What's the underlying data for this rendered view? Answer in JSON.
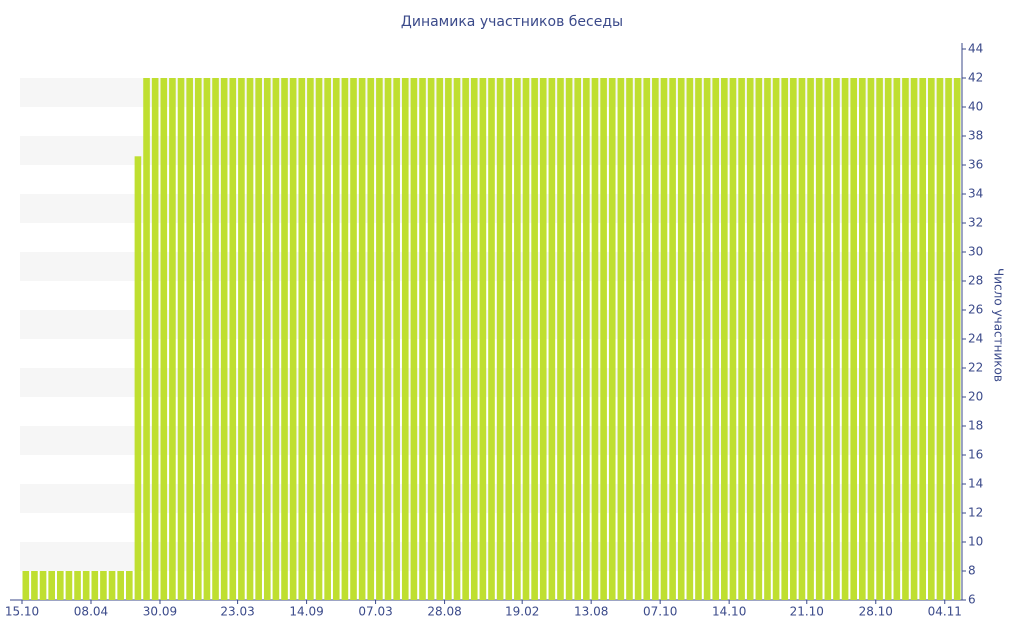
{
  "chart_data": {
    "type": "bar",
    "title": "Динамика участников беседы",
    "y_label": "Число участников",
    "categories": [
      "15.10",
      null,
      null,
      null,
      null,
      null,
      null,
      null,
      "08.04",
      null,
      null,
      null,
      null,
      null,
      null,
      null,
      "30.09",
      null,
      null,
      null,
      null,
      null,
      null,
      null,
      null,
      "23.03",
      null,
      null,
      null,
      null,
      null,
      null,
      null,
      "14.09",
      null,
      null,
      null,
      null,
      null,
      null,
      null,
      "07.03",
      null,
      null,
      null,
      null,
      null,
      null,
      null,
      "28.08",
      null,
      null,
      null,
      null,
      null,
      null,
      null,
      null,
      "19.02",
      null,
      null,
      null,
      null,
      null,
      null,
      null,
      "13.08",
      null,
      null,
      null,
      null,
      null,
      null,
      null,
      "07.10",
      null,
      null,
      null,
      null,
      null,
      null,
      null,
      "14.10",
      null,
      null,
      null,
      null,
      null,
      null,
      null,
      null,
      "21.10",
      null,
      null,
      null,
      null,
      null,
      null,
      null,
      "28.10",
      null,
      null,
      null,
      null,
      null,
      null,
      null,
      "04.11",
      null
    ],
    "values": [
      8,
      8,
      8,
      8,
      8,
      8,
      8,
      8,
      8,
      8,
      8,
      8,
      8,
      36.6,
      42,
      42,
      42,
      42,
      42,
      42,
      42,
      42,
      42,
      42,
      42,
      42,
      42,
      42,
      42,
      42,
      42,
      42,
      42,
      42,
      42,
      42,
      42,
      42,
      42,
      42,
      42,
      42,
      42,
      42,
      42,
      42,
      42,
      42,
      42,
      42,
      42,
      42,
      42,
      42,
      42,
      42,
      42,
      42,
      42,
      42,
      42,
      42,
      42,
      42,
      42,
      42,
      42,
      42,
      42,
      42,
      42,
      42,
      42,
      42,
      42,
      42,
      42,
      42,
      42,
      42,
      42,
      42,
      42,
      42,
      42,
      42,
      42,
      42,
      42,
      42,
      42,
      42,
      42,
      42,
      42,
      42,
      42,
      42,
      42,
      42,
      42,
      42,
      42,
      42,
      42,
      42,
      42,
      42,
      42
    ],
    "color": "#bfdf30",
    "ylim": [
      6,
      44
    ],
    "yticks": [
      6,
      8,
      10,
      12,
      14,
      16,
      18,
      20,
      22,
      24,
      26,
      28,
      30,
      32,
      34,
      36,
      38,
      40,
      42,
      44
    ],
    "grid": true
  }
}
